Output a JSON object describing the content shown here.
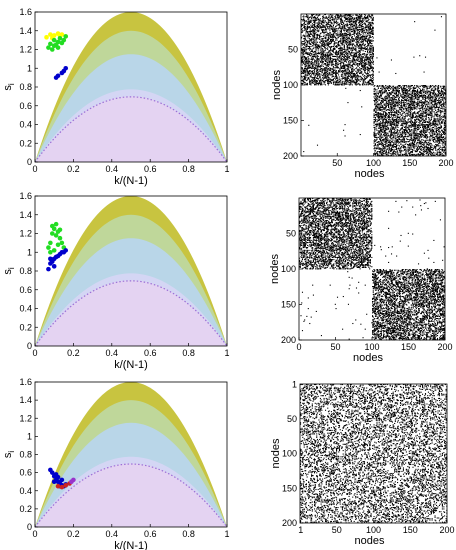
{
  "chart_data": [
    {
      "type": "scatter",
      "panel": "row1-left",
      "xlabel": "k/(N-1)",
      "ylabel": "s",
      "ylabel_sub": "i",
      "xlim": [
        0,
        1
      ],
      "ylim": [
        0,
        1.6
      ],
      "xticks": [
        "0",
        "0.2",
        "0.4",
        "0.6",
        "0.8",
        "1"
      ],
      "yticks": [
        "0",
        "0.2",
        "0.4",
        "0.6",
        "0.8",
        "1",
        "1.2",
        "1.4",
        "1.6"
      ],
      "series": [
        {
          "color": "#ffff00",
          "x": [
            0.06,
            0.08,
            0.1,
            0.12,
            0.14,
            0.16,
            0.09,
            0.13
          ],
          "y": [
            1.33,
            1.36,
            1.35,
            1.37,
            1.36,
            1.34,
            1.32,
            1.35
          ]
        },
        {
          "color": "#22dd22",
          "x": [
            0.07,
            0.08,
            0.1,
            0.11,
            0.12,
            0.13,
            0.15,
            0.16,
            0.09,
            0.14,
            0.1,
            0.12
          ],
          "y": [
            1.22,
            1.26,
            1.3,
            1.25,
            1.28,
            1.32,
            1.3,
            1.34,
            1.2,
            1.27,
            1.24,
            1.22
          ]
        },
        {
          "color": "#0000cc",
          "x": [
            0.11,
            0.12,
            0.14,
            0.15,
            0.16
          ],
          "y": [
            0.9,
            0.92,
            0.95,
            0.97,
            1.0
          ]
        }
      ]
    },
    {
      "type": "heatmap",
      "panel": "row1-right",
      "xlabel": "nodes",
      "ylabel": "nodes",
      "xticks": [
        "50",
        "100",
        "150",
        "200"
      ],
      "yticks": [
        "50",
        "100",
        "150",
        "200"
      ],
      "description_values": {
        "blocks": [
          [
            1,
            100
          ],
          [
            101,
            200
          ]
        ],
        "in_block_density": 0.3,
        "cross_density": 0.001
      }
    },
    {
      "type": "scatter",
      "panel": "row2-left",
      "xlabel": "k/(N-1)",
      "ylabel": "s",
      "ylabel_sub": "i",
      "xlim": [
        0,
        1
      ],
      "ylim": [
        0,
        1.6
      ],
      "xticks": [
        "0",
        "0.2",
        "0.4",
        "0.6",
        "0.8",
        "1"
      ],
      "yticks": [
        "0",
        "0.2",
        "0.4",
        "0.6",
        "0.8",
        "1",
        "1.2",
        "1.4",
        "1.6"
      ],
      "series": [
        {
          "color": "#22dd22",
          "x": [
            0.07,
            0.08,
            0.09,
            0.1,
            0.11,
            0.12,
            0.13,
            0.14,
            0.15,
            0.08,
            0.1,
            0.12,
            0.09,
            0.11,
            0.13
          ],
          "y": [
            1.05,
            1.1,
            1.2,
            1.25,
            1.3,
            1.22,
            1.15,
            1.1,
            1.05,
            1.0,
            1.02,
            1.08,
            1.28,
            1.18,
            1.24
          ]
        },
        {
          "color": "#0000cc",
          "x": [
            0.07,
            0.08,
            0.09,
            0.1,
            0.11,
            0.12,
            0.13,
            0.14,
            0.15,
            0.16,
            0.08,
            0.1
          ],
          "y": [
            0.82,
            0.88,
            0.9,
            0.93,
            0.95,
            0.96,
            0.98,
            1.0,
            1.0,
            1.02,
            0.93,
            0.85
          ]
        }
      ]
    },
    {
      "type": "heatmap",
      "panel": "row2-right",
      "xlabel": "nodes",
      "ylabel": "nodes",
      "xticks": [
        "0",
        "50",
        "100",
        "150",
        "200"
      ],
      "yticks": [
        "50",
        "100",
        "150",
        "200"
      ],
      "description_values": {
        "blocks": [
          [
            1,
            100
          ],
          [
            101,
            200
          ]
        ],
        "in_block_density": 0.3,
        "cross_density": 0.003
      }
    },
    {
      "type": "scatter",
      "panel": "row3-left",
      "xlabel": "k/(N-1)",
      "ylabel": "s",
      "ylabel_sub": "i",
      "xlim": [
        0,
        1
      ],
      "ylim": [
        0,
        1.6
      ],
      "xticks": [
        "0",
        "0.2",
        "0.4",
        "0.6",
        "0.8",
        "1"
      ],
      "yticks": [
        "0",
        "0.2",
        "0.4",
        "0.6",
        "0.8",
        "1",
        "1.2",
        "1.4",
        "1.6"
      ],
      "series": [
        {
          "color": "#0000cc",
          "x": [
            0.08,
            0.09,
            0.1,
            0.11,
            0.12,
            0.13,
            0.14,
            0.15,
            0.16,
            0.1,
            0.12,
            0.14,
            0.11,
            0.13
          ],
          "y": [
            0.63,
            0.6,
            0.56,
            0.52,
            0.5,
            0.48,
            0.46,
            0.45,
            0.47,
            0.5,
            0.55,
            0.52,
            0.58,
            0.45
          ]
        },
        {
          "color": "#cc2222",
          "x": [
            0.12,
            0.14,
            0.16,
            0.18
          ],
          "y": [
            0.45,
            0.44,
            0.46,
            0.48
          ]
        },
        {
          "color": "#9933cc",
          "x": [
            0.19,
            0.2
          ],
          "y": [
            0.5,
            0.52
          ]
        }
      ]
    },
    {
      "type": "heatmap",
      "panel": "row3-right",
      "xlabel": "nodes",
      "ylabel": "nodes",
      "xticks": [
        "1",
        "50",
        "100",
        "150",
        "200"
      ],
      "yticks": [
        "1",
        "50",
        "100",
        "150",
        "200"
      ],
      "description_values": {
        "blocks": [
          [
            1,
            200
          ]
        ],
        "in_block_density": 0.15,
        "cross_density": 0.15
      }
    }
  ],
  "bands": [
    {
      "color": "#c8c440",
      "coef": 6.4
    },
    {
      "color": "#bfd79a",
      "coef": 5.6
    },
    {
      "color": "#b9d6e8",
      "coef": 4.6
    },
    {
      "color": "#d4d6f4",
      "coef": 3.1
    },
    {
      "color": "#e4d3f2",
      "coef": 2.8
    },
    {
      "color": "#9b6fd6",
      "coef": 2.78
    }
  ]
}
